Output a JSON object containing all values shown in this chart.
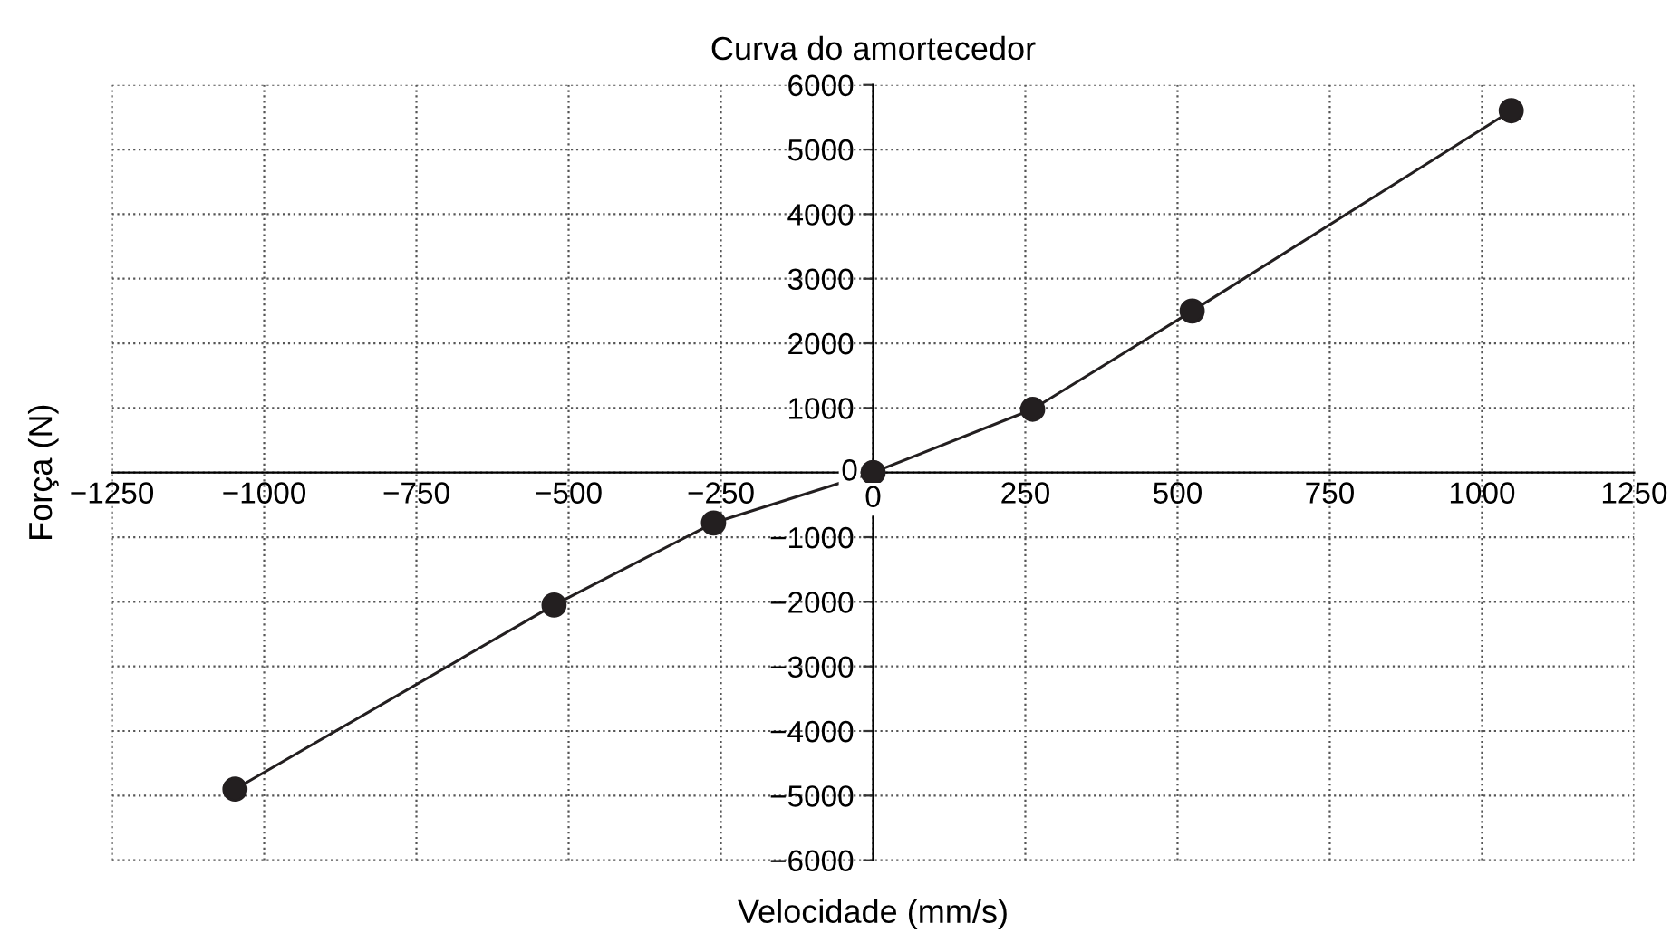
{
  "chart_data": {
    "type": "line",
    "title": "Curva do amortecedor",
    "xlabel": "Velocidade (mm/s)",
    "ylabel": "Força (N)",
    "x": [
      -1048,
      -524,
      -262,
      0,
      262,
      524,
      1048
    ],
    "series": [
      {
        "color": "#231f20",
        "values": [
          -4900,
          -2050,
          -780,
          0,
          980,
          2500,
          5600
        ]
      }
    ],
    "marker": "circle",
    "line_style": "solid",
    "grid": true,
    "xlim": [
      -1250,
      1250
    ],
    "xticks": [
      {
        "value": -1250,
        "label": "−1250"
      },
      {
        "value": -1000,
        "label": "−1000"
      },
      {
        "value": -750,
        "label": "−750"
      },
      {
        "value": -500,
        "label": "−500"
      },
      {
        "value": -250,
        "label": "−250"
      },
      0,
      250,
      500,
      750,
      1000,
      1250
    ],
    "ylim": [
      -6000,
      6000
    ],
    "yticks": [
      {
        "value": -6000,
        "label": "−6000"
      },
      {
        "value": -5000,
        "label": "−5000"
      },
      {
        "value": -4000,
        "label": "−4000"
      },
      {
        "value": -3000,
        "label": "−3000"
      },
      {
        "value": -2000,
        "label": "−2000"
      },
      {
        "value": -1000,
        "label": "−1000"
      },
      0,
      1000,
      2000,
      3000,
      4000,
      5000,
      6000
    ]
  }
}
